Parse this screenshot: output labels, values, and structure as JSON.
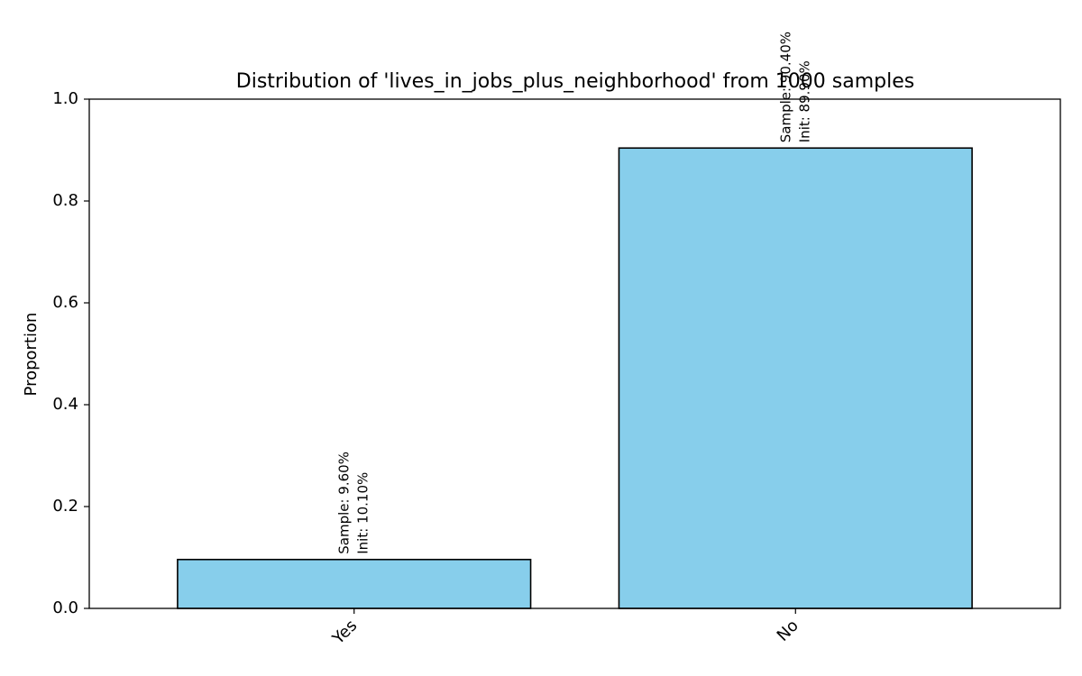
{
  "chart_data": {
    "type": "bar",
    "title": "Distribution of 'lives_in_jobs_plus_neighborhood' from 1000 samples",
    "xlabel": "",
    "ylabel": "Proportion",
    "categories": [
      "Yes",
      "No"
    ],
    "values": [
      0.096,
      0.904
    ],
    "annotations": [
      [
        "Sample: 9.60%",
        "Init: 10.10%"
      ],
      [
        "Sample: 90.40%",
        "Init: 89.90%"
      ]
    ],
    "ylim": [
      0,
      1.0
    ],
    "yticks": [
      0.0,
      0.2,
      0.4,
      0.6,
      0.8,
      1.0
    ],
    "ytick_labels": [
      "0.0",
      "0.2",
      "0.4",
      "0.6",
      "0.8",
      "1.0"
    ],
    "grid": false,
    "bar_color": "#87CEEB",
    "bar_edge_color": "#000000"
  }
}
